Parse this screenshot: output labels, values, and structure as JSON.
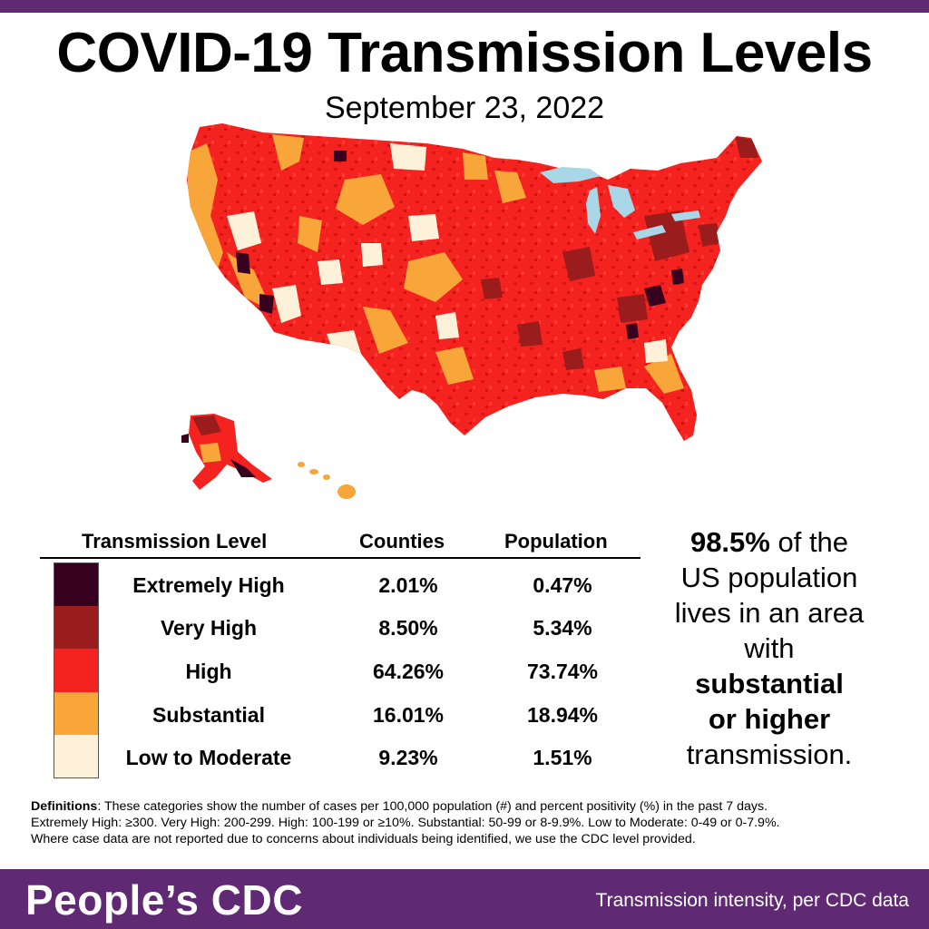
{
  "header": {
    "title": "COVID-19 Transmission Levels",
    "date": "September 23, 2022"
  },
  "colors": {
    "purple": "#5f2a73",
    "extremely_high": "#37001f",
    "very_high": "#9b1c1c",
    "high": "#f4231f",
    "substantial": "#f8a53a",
    "low_to_moderate": "#fdf1da",
    "water": "#a9d7e8"
  },
  "table": {
    "headers": {
      "level": "Transmission Level",
      "counties": "Counties",
      "population": "Population"
    },
    "rows": [
      {
        "level": "Extremely High",
        "counties": "2.01%",
        "population": "0.47%",
        "color": "#37001f"
      },
      {
        "level": "Very High",
        "counties": "8.50%",
        "population": "5.34%",
        "color": "#9b1c1c"
      },
      {
        "level": "High",
        "counties": "64.26%",
        "population": "73.74%",
        "color": "#f4231f"
      },
      {
        "level": "Substantial",
        "counties": "16.01%",
        "population": "18.94%",
        "color": "#f8a53a"
      },
      {
        "level": "Low to Moderate",
        "counties": "9.23%",
        "population": "1.51%",
        "color": "#fdf1da"
      }
    ]
  },
  "callout": {
    "percent": "98.5%",
    "line1_rest": " of the",
    "line2": "US population",
    "line3": "lives in an area",
    "line4": "with",
    "line5": "substantial",
    "line6": "or higher",
    "line7": "transmission."
  },
  "definitions": {
    "label": "Definitions",
    "line1": ": These categories show the number of cases per 100,000 population (#) and percent positivity (%) in the past 7 days.",
    "line2": "Extremely High: ≥300. Very High: 200-299. High: 100-199 or ≥10%. Substantial: 50-99 or 8-9.9%. Low to Moderate: 0-49 or 0-7.9%.",
    "line3": "Where case data are not reported due to concerns about individuals being identified, we use the CDC level provided."
  },
  "footer": {
    "brand": "People’s CDC",
    "tagline": "Transmission intensity, per CDC data"
  }
}
